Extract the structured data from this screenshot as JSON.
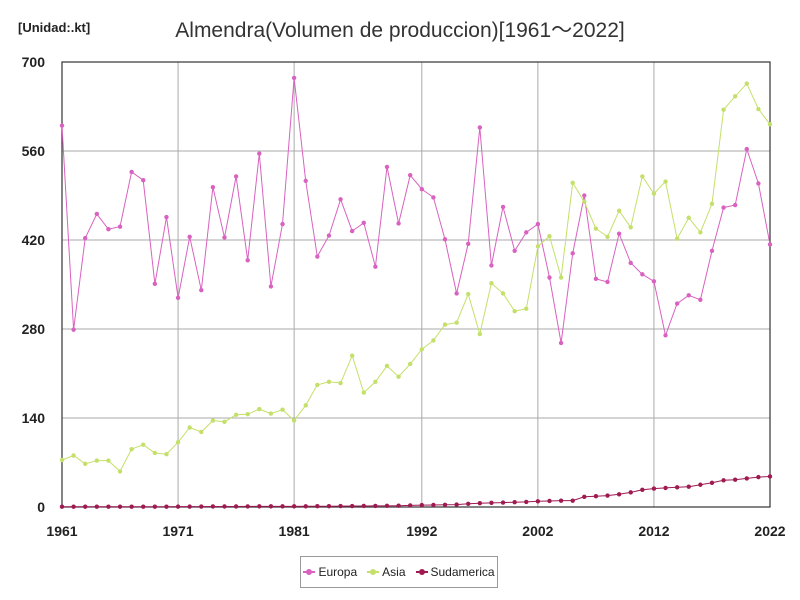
{
  "chart_data": {
    "type": "line",
    "title": "Almendra(Volumen de produccion)[1961～2022]",
    "unit_label": "[Unidad:.kt]",
    "xlabel": "",
    "ylabel": "",
    "xlim": [
      1961,
      2022
    ],
    "ylim": [
      0,
      700
    ],
    "x_ticks": [
      1961,
      1971,
      1981,
      1992,
      2002,
      2012,
      2022
    ],
    "y_ticks": [
      0,
      140,
      280,
      420,
      560,
      700
    ],
    "grid": true,
    "legend_position": "bottom",
    "x": [
      1961,
      1962,
      1963,
      1964,
      1965,
      1966,
      1967,
      1968,
      1969,
      1970,
      1971,
      1972,
      1973,
      1974,
      1975,
      1976,
      1977,
      1978,
      1979,
      1980,
      1981,
      1982,
      1983,
      1984,
      1985,
      1986,
      1987,
      1988,
      1989,
      1990,
      1991,
      1992,
      1993,
      1994,
      1995,
      1996,
      1997,
      1998,
      1999,
      2000,
      2001,
      2002,
      2003,
      2004,
      2005,
      2006,
      2007,
      2008,
      2009,
      2010,
      2011,
      2012,
      2013,
      2014,
      2015,
      2016,
      2017,
      2018,
      2019,
      2020,
      2021,
      2022
    ],
    "series": [
      {
        "name": "Europa",
        "color": "#d962c0",
        "values": [
          600,
          279,
          423,
          461,
          437,
          441,
          527,
          514,
          351,
          456,
          329,
          425,
          341,
          503,
          424,
          520,
          388,
          556,
          347,
          445,
          675,
          513,
          394,
          427,
          484,
          434,
          447,
          378,
          535,
          446,
          522,
          500,
          487,
          421,
          336,
          414,
          597,
          380,
          472,
          403,
          432,
          445,
          361,
          258,
          399,
          490,
          359,
          354,
          430,
          384,
          366,
          355,
          270,
          320,
          333,
          326,
          403,
          471,
          475,
          563,
          509,
          413
        ]
      },
      {
        "name": "Asia",
        "color": "#c4e06a",
        "values": [
          74,
          81,
          68,
          73,
          73,
          56,
          91,
          98,
          85,
          83,
          102,
          125,
          118,
          136,
          134,
          145,
          146,
          154,
          147,
          153,
          136,
          160,
          192,
          197,
          195,
          238,
          180,
          197,
          222,
          205,
          225,
          248,
          262,
          287,
          290,
          335,
          272,
          352,
          336,
          308,
          312,
          410,
          426,
          361,
          510,
          480,
          438,
          425,
          466,
          440,
          520,
          493,
          512,
          422,
          455,
          432,
          477,
          625,
          646,
          666,
          626,
          602
        ]
      },
      {
        "name": "Sudamerica",
        "color": "#9e1a50",
        "values": [
          0.5,
          0.5,
          0.5,
          0.5,
          0.5,
          0.5,
          0.5,
          0.5,
          0.5,
          0.5,
          0.6,
          0.6,
          0.7,
          0.8,
          0.8,
          0.8,
          0.9,
          1,
          1,
          1,
          1,
          1.1,
          1.2,
          1.3,
          1.4,
          1.5,
          1.6,
          1.7,
          1.8,
          2,
          2.5,
          3,
          3.2,
          3.5,
          3.8,
          5,
          6,
          6.5,
          7,
          7.5,
          8,
          9,
          9.5,
          10,
          10,
          16,
          17,
          18,
          20,
          23,
          27,
          29,
          30,
          31,
          32,
          35,
          38,
          42,
          43,
          45,
          47,
          48
        ]
      }
    ]
  }
}
